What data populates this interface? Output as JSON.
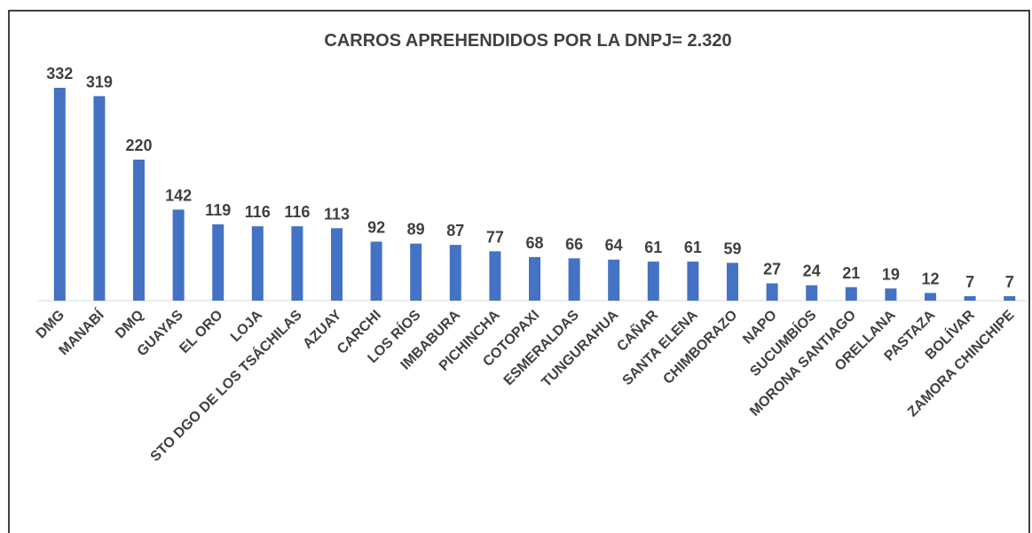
{
  "chart_data": {
    "type": "bar",
    "title": "CARROS APREHENDIDOS POR LA DNPJ= 2.320",
    "categories": [
      "DMG",
      "MANABÍ",
      "DMQ",
      "GUAYAS",
      "EL ORO",
      "LOJA",
      "STO DGO DE LOS TSÁCHILAS",
      "AZUAY",
      "CARCHI",
      "LOS RÍOS",
      "IMBABURA",
      "PICHINCHA",
      "COTOPAXI",
      "ESMERALDAS",
      "TUNGURAHUA",
      "CAÑAR",
      "SANTA ELENA",
      "CHIMBORAZO",
      "NAPO",
      "SUCUMBÍOS",
      "MORONA SANTIAGO",
      "ORELLANA",
      "PASTAZA",
      "BOLÍVAR",
      "ZAMORA CHINCHIPE"
    ],
    "values": [
      332,
      319,
      220,
      142,
      119,
      116,
      116,
      113,
      92,
      89,
      87,
      77,
      68,
      66,
      64,
      61,
      61,
      59,
      27,
      24,
      21,
      19,
      12,
      7,
      7
    ],
    "color": "#4472c4"
  }
}
